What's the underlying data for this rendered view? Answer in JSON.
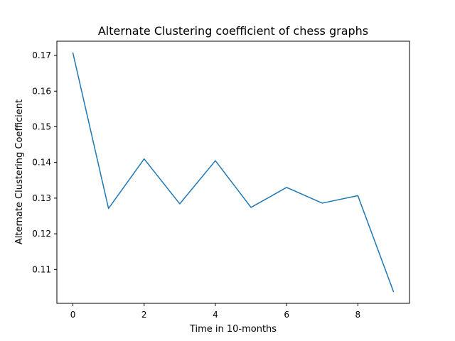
{
  "chart_data": {
    "type": "line",
    "title": "Alternate Clustering coefficient of chess graphs",
    "xlabel": "Time in 10-months",
    "ylabel": "Alternate Clustering Coefficient",
    "x": [
      0,
      1,
      2,
      3,
      4,
      5,
      6,
      7,
      8,
      9
    ],
    "series": [
      {
        "values": [
          0.1707,
          0.1271,
          0.141,
          0.1284,
          0.1405,
          0.1274,
          0.133,
          0.1286,
          0.1307,
          0.1038
        ],
        "color": "#1f77b4"
      }
    ],
    "xlim": [
      -0.45,
      9.45
    ],
    "ylim": [
      0.1005,
      0.174
    ],
    "xticks": [
      0,
      2,
      4,
      6,
      8
    ],
    "xtick_labels": [
      "0",
      "2",
      "4",
      "6",
      "8"
    ],
    "yticks": [
      0.11,
      0.12,
      0.13,
      0.14,
      0.15,
      0.16,
      0.17
    ],
    "ytick_labels": [
      "0.11",
      "0.12",
      "0.13",
      "0.14",
      "0.15",
      "0.16",
      "0.17"
    ],
    "grid": false,
    "legend": "none"
  }
}
